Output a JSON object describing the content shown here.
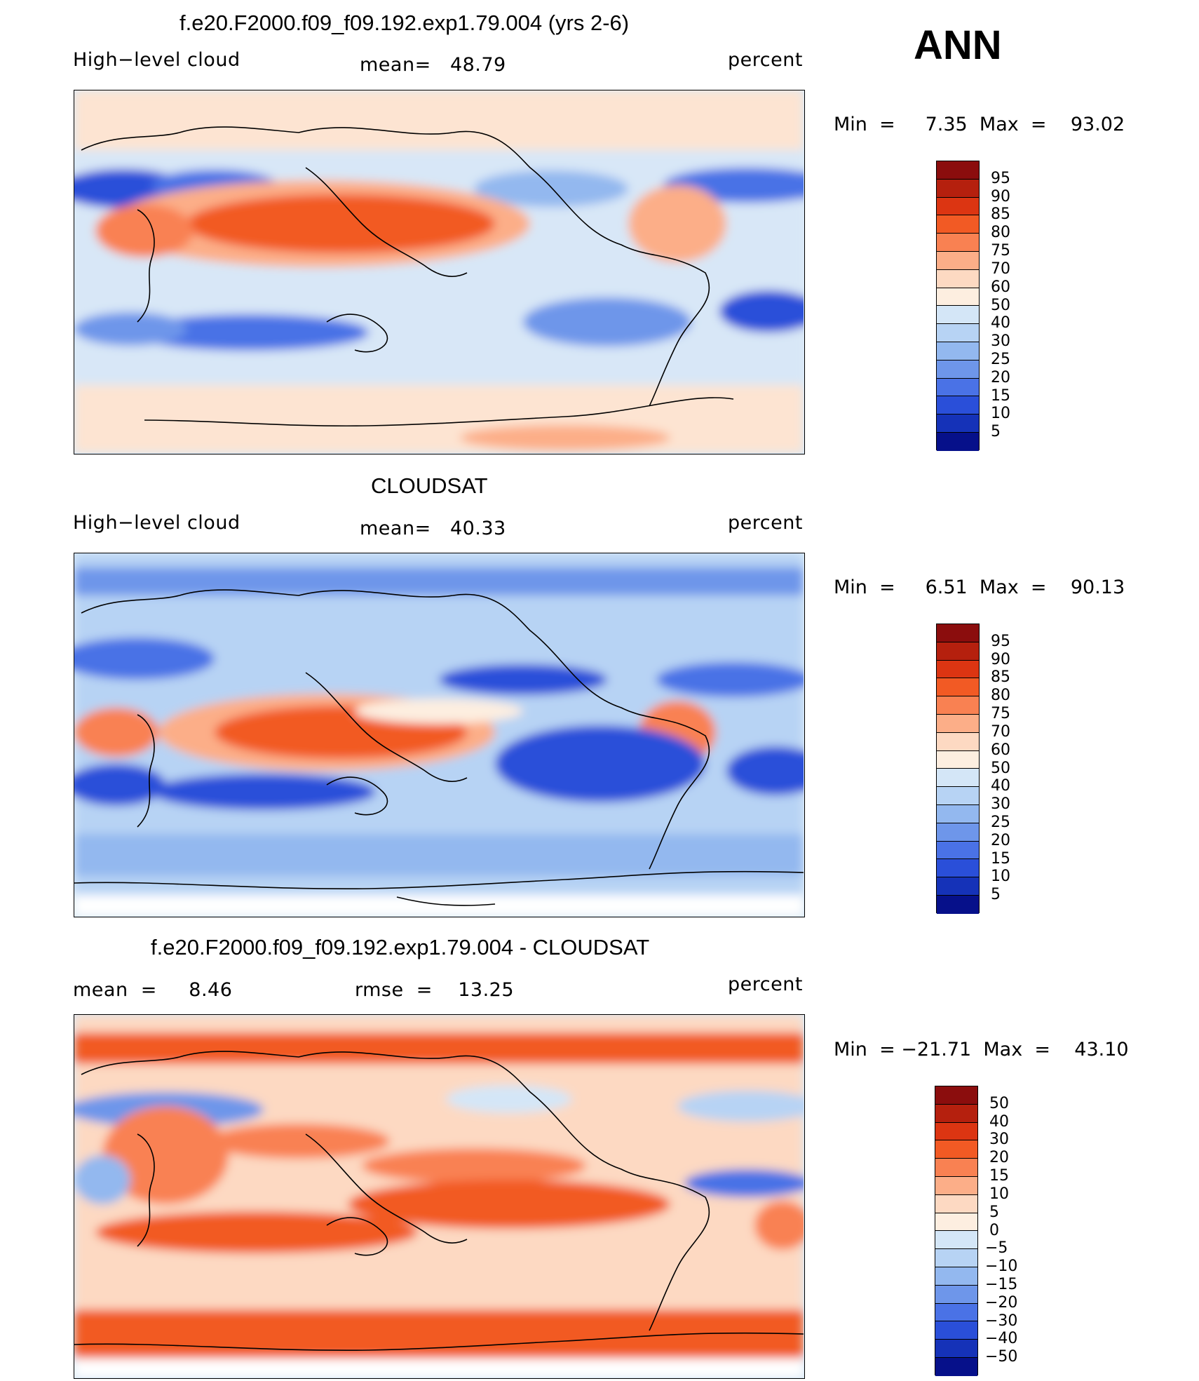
{
  "figure": {
    "season": "ANN",
    "units": "percent"
  },
  "chart_data": [
    {
      "type": "heatmap",
      "title": "f.e20.F2000.f09_f09.192.exp1.79.004 (yrs 2-6)",
      "left_label": "High−level cloud",
      "mean_text": "mean=   48.79",
      "mean": 48.79,
      "units": "percent",
      "range_text": "Min  =     7.35  Max  =    93.02",
      "min": 7.35,
      "max": 93.02,
      "colorbar_levels": [
        "95",
        "90",
        "85",
        "80",
        "75",
        "70",
        "60",
        "50",
        "40",
        "30",
        "25",
        "20",
        "15",
        "10",
        "5"
      ],
      "colorbar_colors": [
        "#8b0d0d",
        "#b5200e",
        "#dc3512",
        "#f25a24",
        "#f98152",
        "#fcae88",
        "#fdd9c2",
        "#fdeee0",
        "#d4e6f7",
        "#b7d3f4",
        "#93b8ef",
        "#6e96ea",
        "#4a72e6",
        "#2a4fd9",
        "#1532b8",
        "#06108a"
      ]
    },
    {
      "type": "heatmap",
      "title": "CLOUDSAT",
      "left_label": "High−level cloud",
      "mean_text": "mean=   40.33",
      "mean": 40.33,
      "units": "percent",
      "range_text": "Min  =     6.51  Max  =    90.13",
      "min": 6.51,
      "max": 90.13,
      "colorbar_levels": [
        "95",
        "90",
        "85",
        "80",
        "75",
        "70",
        "60",
        "50",
        "40",
        "30",
        "25",
        "20",
        "15",
        "10",
        "5"
      ],
      "colorbar_colors": [
        "#8b0d0d",
        "#b5200e",
        "#dc3512",
        "#f25a24",
        "#f98152",
        "#fcae88",
        "#fdd9c2",
        "#fdeee0",
        "#d4e6f7",
        "#b7d3f4",
        "#93b8ef",
        "#6e96ea",
        "#4a72e6",
        "#2a4fd9",
        "#1532b8",
        "#06108a"
      ]
    },
    {
      "type": "heatmap",
      "title": "f.e20.F2000.f09_f09.192.exp1.79.004 - CLOUDSAT",
      "left_label": "mean  =     8.46",
      "mean": 8.46,
      "mean_text": "rmse  =    13.25",
      "rmse": 13.25,
      "units": "percent",
      "range_text": "Min  = −21.71  Max  =    43.10",
      "min": -21.71,
      "max": 43.1,
      "colorbar_levels": [
        "50",
        "40",
        "30",
        "20",
        "15",
        "10",
        "5",
        "0",
        "−5",
        "−10",
        "−15",
        "−20",
        "−30",
        "−40",
        "−50"
      ],
      "colorbar_colors": [
        "#8b0d0d",
        "#b5200e",
        "#dc3512",
        "#f25a24",
        "#f98152",
        "#fcae88",
        "#fdd9c2",
        "#fdeee0",
        "#d4e6f7",
        "#b7d3f4",
        "#93b8ef",
        "#6e96ea",
        "#4a72e6",
        "#2a4fd9",
        "#1532b8",
        "#06108a"
      ]
    }
  ]
}
